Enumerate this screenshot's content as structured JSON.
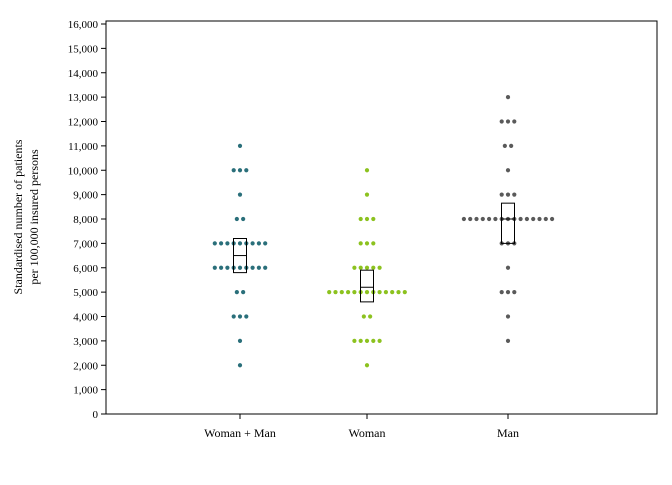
{
  "chart_data": {
    "type": "scatter",
    "title": "",
    "xlabel": "",
    "ylabel_lines": [
      "Standardised number of patients",
      "per 100,000 insured persons"
    ],
    "ylim": [
      0,
      16000
    ],
    "ytick_values": [
      0,
      1000,
      2000,
      3000,
      4000,
      5000,
      6000,
      7000,
      8000,
      9000,
      10000,
      11000,
      12000,
      13000,
      14000,
      15000,
      16000
    ],
    "ytick_labels": [
      "0",
      "1,000",
      "2,000",
      "3,000",
      "4,000",
      "5,000",
      "6,000",
      "7,000",
      "8,000",
      "9,000",
      "10,000",
      "11,000",
      "12,000",
      "13,000",
      "14,000",
      "15,000",
      "16,000"
    ],
    "categories": [
      "Woman + Man",
      "Woman",
      "Man"
    ],
    "grid": false,
    "legend": "none",
    "series": [
      {
        "category": "Woman + Man",
        "color": "#2a6f7a",
        "points": [
          {
            "y": 11000,
            "count": 1
          },
          {
            "y": 10000,
            "count": 3
          },
          {
            "y": 9000,
            "count": 1
          },
          {
            "y": 8000,
            "count": 2
          },
          {
            "y": 7000,
            "count": 9
          },
          {
            "y": 6000,
            "count": 9
          },
          {
            "y": 5000,
            "count": 2
          },
          {
            "y": 4000,
            "count": 3
          },
          {
            "y": 3000,
            "count": 1
          },
          {
            "y": 2000,
            "count": 1
          }
        ],
        "box": {
          "low": 5800,
          "mid": 6500,
          "high": 7200
        }
      },
      {
        "category": "Woman",
        "color": "#8cc21f",
        "points": [
          {
            "y": 10000,
            "count": 1
          },
          {
            "y": 9000,
            "count": 1
          },
          {
            "y": 8000,
            "count": 3
          },
          {
            "y": 7000,
            "count": 3
          },
          {
            "y": 6000,
            "count": 5
          },
          {
            "y": 5000,
            "count": 13
          },
          {
            "y": 4000,
            "count": 2
          },
          {
            "y": 3000,
            "count": 5
          },
          {
            "y": 2000,
            "count": 1
          }
        ],
        "box": {
          "low": 4600,
          "mid": 5200,
          "high": 5900
        }
      },
      {
        "category": "Man",
        "color": "#5a5a5a",
        "points": [
          {
            "y": 13000,
            "count": 1
          },
          {
            "y": 12000,
            "count": 3
          },
          {
            "y": 11000,
            "count": 2
          },
          {
            "y": 10000,
            "count": 1
          },
          {
            "y": 9000,
            "count": 3
          },
          {
            "y": 8000,
            "count": 15
          },
          {
            "y": 7000,
            "count": 3
          },
          {
            "y": 6000,
            "count": 1
          },
          {
            "y": 5000,
            "count": 3
          },
          {
            "y": 4000,
            "count": 1
          },
          {
            "y": 3000,
            "count": 1
          }
        ],
        "box": {
          "low": 7000,
          "mid": 8000,
          "high": 8650
        }
      }
    ]
  }
}
